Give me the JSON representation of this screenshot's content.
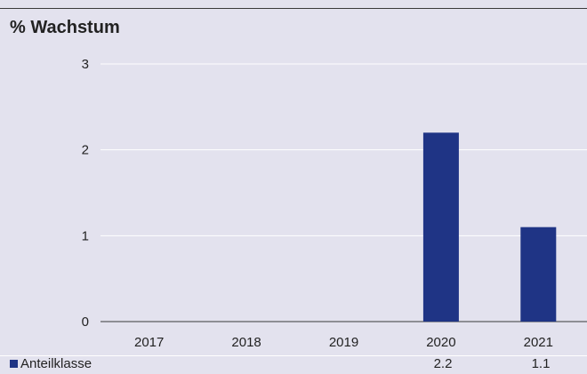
{
  "chart_data": {
    "type": "bar",
    "title": "% Wachstum",
    "categories": [
      "2017",
      "2018",
      "2019",
      "2020",
      "2021"
    ],
    "series": [
      {
        "name": "Anteilklasse",
        "values": [
          null,
          null,
          null,
          2.2,
          1.1
        ],
        "labels": [
          "",
          "",
          "",
          "2.2",
          "1.1"
        ]
      }
    ],
    "ylim": [
      0,
      3
    ],
    "yticks": [
      "0",
      "1",
      "2",
      "3"
    ],
    "grid": true,
    "legend": "bottom-left",
    "colors": {
      "bar": "#1f3485",
      "background": "#e3e2ee",
      "grid": "#ffffff",
      "axis": "#3a3a3a"
    }
  }
}
